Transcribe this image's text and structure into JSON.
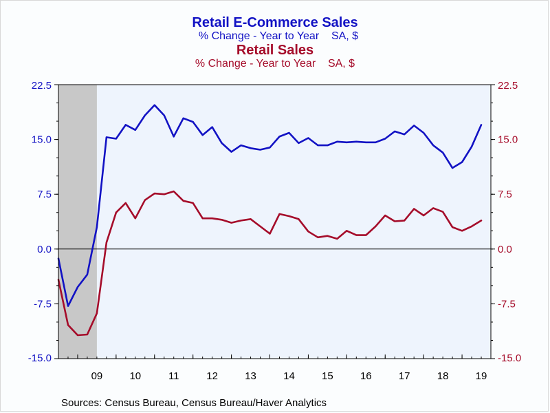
{
  "titles": {
    "series1_title": "Retail E-Commerce Sales",
    "series1_subtitle": "% Change - Year to Year    SA, $",
    "series2_title": "Retail Sales",
    "series2_subtitle": "% Change - Year to Year    SA, $"
  },
  "source": "Sources:  Census Bureau, Census Bureau/Haver Analytics",
  "colors": {
    "ecommerce": "#1212c4",
    "retail": "#a50c2a",
    "plot_bg": "#eef4fd",
    "recession": "#c8c8c8"
  },
  "chart_data": {
    "type": "line",
    "x_start_year": 2008.5,
    "x_end_year": 2019.75,
    "x_step": 0.25,
    "xtick_labels": [
      "09",
      "10",
      "11",
      "12",
      "13",
      "14",
      "15",
      "16",
      "17",
      "18",
      "19"
    ],
    "ylim": [
      -15.0,
      22.5
    ],
    "yticks": [
      "22.5",
      "15.0",
      "7.5",
      "0.0",
      "-7.5",
      "-15.0"
    ],
    "yticks_right": [
      "22.5",
      "15.0",
      "7.5",
      "0.0",
      "-7.5",
      "-15.0"
    ],
    "recession_shading": [
      2008.5,
      2009.5
    ],
    "zero_line": true,
    "series": [
      {
        "name": "Retail E-Commerce Sales",
        "axis": "left",
        "values": [
          -1.3,
          -7.8,
          -5.2,
          -3.5,
          3.0,
          15.3,
          15.1,
          17.0,
          16.3,
          18.3,
          19.7,
          18.3,
          15.4,
          17.9,
          17.4,
          15.6,
          16.7,
          14.5,
          13.3,
          14.2,
          13.8,
          13.6,
          13.9,
          15.4,
          15.9,
          14.5,
          15.2,
          14.2,
          14.2,
          14.7,
          14.6,
          14.7,
          14.6,
          14.6,
          15.1,
          16.1,
          15.7,
          16.9,
          15.9,
          14.2,
          13.2,
          11.1,
          11.9,
          14.0,
          17.0
        ]
      },
      {
        "name": "Retail Sales",
        "axis": "right",
        "values": [
          -4.2,
          -10.4,
          -11.8,
          -11.7,
          -8.8,
          0.9,
          5.0,
          6.3,
          4.2,
          6.7,
          7.6,
          7.5,
          7.9,
          6.6,
          6.3,
          4.2,
          4.2,
          4.0,
          3.6,
          3.9,
          4.1,
          3.1,
          2.1,
          4.8,
          4.5,
          4.1,
          2.4,
          1.6,
          1.8,
          1.4,
          2.5,
          1.9,
          1.9,
          3.1,
          4.6,
          3.8,
          3.9,
          5.5,
          4.6,
          5.6,
          5.1,
          3.0,
          2.5,
          3.1,
          3.9
        ]
      }
    ]
  }
}
